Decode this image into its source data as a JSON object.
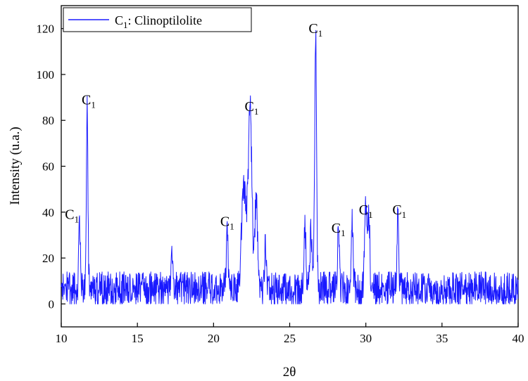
{
  "chart_data": {
    "type": "line",
    "xlabel": "2θ",
    "ylabel": "Intensity (u.a.)",
    "xlim": [
      10,
      40
    ],
    "ylim": [
      -10,
      130
    ],
    "xticks": [
      10,
      15,
      20,
      25,
      30,
      35,
      40
    ],
    "yticks": [
      0,
      20,
      40,
      60,
      80,
      100,
      120
    ],
    "grid": false,
    "legend": {
      "position": "top-left",
      "entries": [
        {
          "main": "C",
          "sub": "1",
          "rest": ": Clinoptilolite"
        }
      ]
    },
    "series": [
      {
        "name": "C1: Clinoptilolite",
        "color": "#1a1aff",
        "baseline_noise": {
          "min": 0,
          "max": 14
        },
        "peaks": [
          {
            "x": 11.2,
            "y": 35,
            "width": 0.05
          },
          {
            "x": 11.7,
            "y": 87,
            "width": 0.05
          },
          {
            "x": 17.3,
            "y": 20,
            "width": 0.06
          },
          {
            "x": 20.9,
            "y": 32,
            "width": 0.06
          },
          {
            "x": 22.0,
            "y": 48,
            "width": 0.15
          },
          {
            "x": 22.4,
            "y": 81,
            "width": 0.12
          },
          {
            "x": 22.8,
            "y": 44,
            "width": 0.08
          },
          {
            "x": 23.4,
            "y": 24,
            "width": 0.05
          },
          {
            "x": 26.0,
            "y": 34,
            "width": 0.06
          },
          {
            "x": 26.4,
            "y": 30,
            "width": 0.06
          },
          {
            "x": 26.7,
            "y": 116,
            "width": 0.06
          },
          {
            "x": 28.2,
            "y": 29,
            "width": 0.06
          },
          {
            "x": 29.1,
            "y": 32,
            "width": 0.06
          },
          {
            "x": 30.0,
            "y": 39,
            "width": 0.08
          },
          {
            "x": 30.2,
            "y": 38,
            "width": 0.06
          },
          {
            "x": 32.1,
            "y": 38,
            "width": 0.05
          }
        ]
      }
    ],
    "annotations": [
      {
        "main": "C",
        "sub": "1",
        "x": 10.7,
        "y": 37
      },
      {
        "main": "C",
        "sub": "1",
        "x": 11.8,
        "y": 87
      },
      {
        "main": "C",
        "sub": "1",
        "x": 20.9,
        "y": 34
      },
      {
        "main": "C",
        "sub": "1",
        "x": 22.5,
        "y": 84
      },
      {
        "main": "C",
        "sub": "1",
        "x": 26.7,
        "y": 118
      },
      {
        "main": "C",
        "sub": "1",
        "x": 28.2,
        "y": 31
      },
      {
        "main": "C",
        "sub": "1",
        "x": 30.0,
        "y": 39
      },
      {
        "main": "C",
        "sub": "1",
        "x": 32.2,
        "y": 39
      }
    ]
  }
}
